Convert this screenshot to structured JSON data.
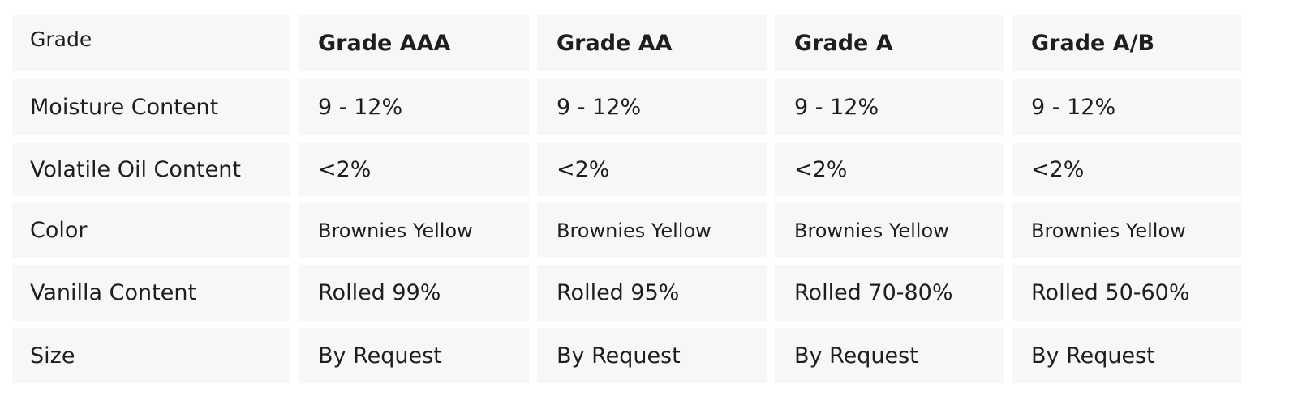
{
  "table": {
    "header": [
      "Grade",
      "Grade AAA",
      "Grade AA",
      "Grade A",
      "Grade A/B"
    ],
    "rows": [
      [
        "Moisture Content",
        "9 - 12%",
        "9 - 12%",
        "9 - 12%",
        "9 - 12%"
      ],
      [
        "Volatile Oil Content",
        "<2%",
        "<2%",
        "<2%",
        "<2%"
      ],
      [
        "Color",
        "Brownies Yellow",
        "Brownies Yellow",
        "Brownies Yellow",
        "Brownies Yellow"
      ],
      [
        "Vanilla Content",
        "Rolled 99%",
        "Rolled 95%",
        "Rolled 70-80%",
        "Rolled 50-60%"
      ],
      [
        "Size",
        "By Request",
        "By Request",
        "By Request",
        "By Request"
      ]
    ]
  }
}
